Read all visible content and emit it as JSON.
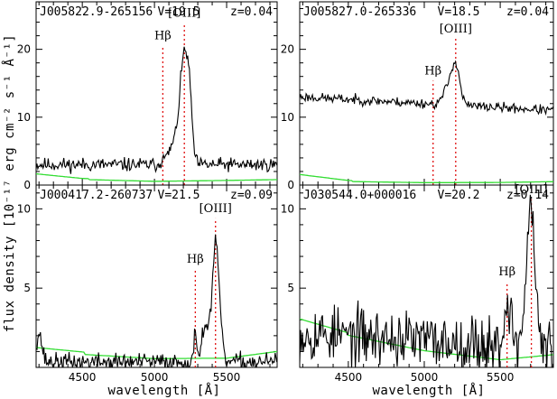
{
  "figure": {
    "xlabel": "wavelength [Å]",
    "ylabel": "flux density [10⁻¹⁷ erg cm⁻² s⁻¹ Å⁻¹]"
  },
  "colors": {
    "spectrum": "#000000",
    "error": "#33dd33",
    "marker": "#e01010"
  },
  "chart_data": [
    {
      "type": "line",
      "object": "J005822.9-265156",
      "vmag": "V=19.5",
      "redshift": "z=0.04",
      "xlim": [
        4180,
        5850
      ],
      "ylim": [
        0,
        27
      ],
      "yticks": [
        0,
        10,
        20
      ],
      "xticks": [
        4500,
        5000,
        5500
      ],
      "xticklabels": [],
      "lines": [
        {
          "label": "Hβ",
          "x": 5058,
          "label_y": 21.5
        },
        {
          "label": "[OIII]",
          "x": 5207,
          "label_y": 24.8
        }
      ],
      "spectrum": {
        "base": 3.0,
        "noise": 1.0,
        "seed": 11,
        "features": [
          [
            5060,
            2.0,
            5
          ],
          [
            5140,
            3.0,
            40
          ],
          [
            5208,
            15.5,
            30
          ],
          [
            5245,
            5.0,
            18
          ]
        ]
      },
      "error": [
        [
          4180,
          1.6
        ],
        [
          4500,
          0.9
        ],
        [
          5000,
          0.6
        ],
        [
          5500,
          0.7
        ],
        [
          5850,
          0.8
        ]
      ]
    },
    {
      "type": "line",
      "object": "J005827.0-265336",
      "vmag": "V=18.5",
      "redshift": "z=0.04",
      "xlim": [
        4180,
        5850
      ],
      "ylim": [
        0,
        27
      ],
      "yticks": [
        0,
        10,
        20
      ],
      "xticks": [
        4500,
        5000,
        5500
      ],
      "xticklabels": [],
      "lines": [
        {
          "label": "Hβ",
          "x": 5058,
          "label_y": 16.3
        },
        {
          "label": "[OIII]",
          "x": 5207,
          "label_y": 22.5
        }
      ],
      "spectrum": {
        "base": 12.0,
        "noise": 0.7,
        "seed": 23,
        "slope": -1.2,
        "features": [
          [
            5150,
            2.0,
            30
          ],
          [
            5205,
            6.0,
            28
          ]
        ]
      },
      "error": [
        [
          4180,
          1.5
        ],
        [
          4500,
          0.6
        ],
        [
          5000,
          0.4
        ],
        [
          5500,
          0.4
        ],
        [
          5850,
          0.5
        ]
      ]
    },
    {
      "type": "line",
      "object": "J000417.2-260737",
      "vmag": "V=21.5",
      "redshift": "z=0.09",
      "xlim": [
        4180,
        5850
      ],
      "ylim": [
        0,
        11.5
      ],
      "yticks": [
        0,
        5,
        10
      ],
      "xticks": [
        4500,
        5000,
        5500
      ],
      "xticklabels": [
        "4500",
        "5000",
        "5500"
      ],
      "lines": [
        {
          "label": "Hβ",
          "x": 5283,
          "label_y": 6.6
        },
        {
          "label": "[OIII]",
          "x": 5423,
          "label_y": 9.8
        }
      ],
      "spectrum": {
        "base": 0.35,
        "noise": 0.55,
        "seed": 37,
        "features": [
          [
            4200,
            1.8,
            20
          ],
          [
            5284,
            2.1,
            7
          ],
          [
            5355,
            2.2,
            30
          ],
          [
            5427,
            7.3,
            24
          ]
        ]
      },
      "error": [
        [
          4180,
          1.2
        ],
        [
          4500,
          0.9
        ],
        [
          5000,
          0.6
        ],
        [
          5500,
          0.6
        ],
        [
          5850,
          1.0
        ]
      ]
    },
    {
      "type": "line",
      "object": "J030544.0+000016",
      "vmag": "V=20.2",
      "redshift": "z=0.14",
      "xlim": [
        4180,
        5850
      ],
      "ylim": [
        0,
        11.5
      ],
      "yticks": [
        0,
        5,
        10
      ],
      "xticks": [
        4500,
        5000,
        5500
      ],
      "xticklabels": [
        "4500",
        "5000",
        "5500"
      ],
      "lines": [
        {
          "label": "Hβ",
          "x": 5545,
          "label_y": 5.8
        },
        {
          "label": "[OIII]",
          "x": 5705,
          "label_y": 11.0
        }
      ],
      "spectrum": {
        "base": 1.7,
        "noise": 1.8,
        "seed": 53,
        "slope": -0.6,
        "features": [
          [
            5550,
            2.8,
            22
          ],
          [
            5700,
            8.8,
            28
          ]
        ]
      },
      "error": [
        [
          4180,
          3.0
        ],
        [
          4500,
          2.1
        ],
        [
          5000,
          1.1
        ],
        [
          5500,
          0.5
        ],
        [
          5850,
          0.8
        ]
      ]
    }
  ]
}
